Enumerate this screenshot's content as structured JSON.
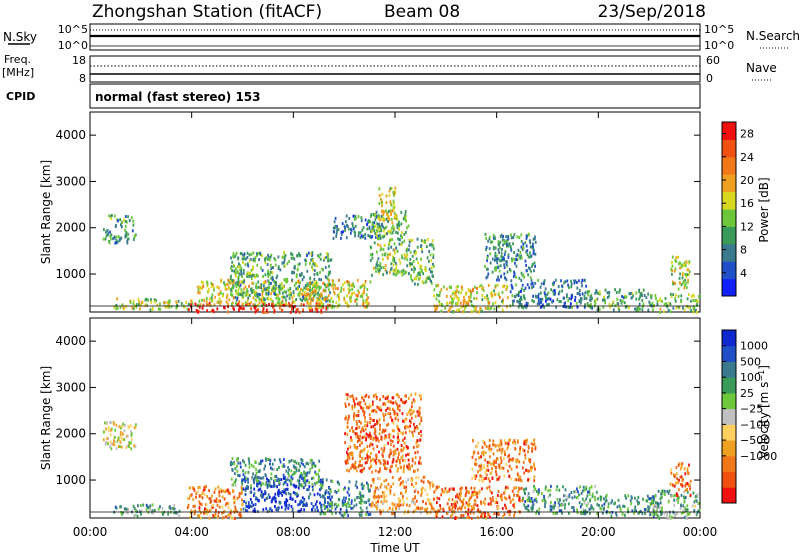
{
  "header": {
    "title": "Zhongshan Station (fitACF)",
    "beam": "Beam 08",
    "date": "23/Sep/2018"
  },
  "noise_panel": {
    "left_label": "N.Sky",
    "right_label": "N.Search",
    "left_ticks": [
      "10^5",
      "10^0"
    ],
    "right_ticks": [
      "10^5",
      "10^0"
    ]
  },
  "freq_panel": {
    "left_label_1": "Freq.",
    "left_label_2": "[MHz]",
    "right_label": "Nave",
    "left_ticks": [
      "18",
      "8"
    ],
    "right_ticks": [
      "60",
      "0"
    ]
  },
  "cpid": {
    "label": "CPID",
    "text": "normal (fast stereo) 153"
  },
  "colors": {
    "power_scale": [
      "#1020ff",
      "#2050c8",
      "#3a7a8e",
      "#3a9a5a",
      "#6cc83a",
      "#d8d820",
      "#f0a020",
      "#f07818",
      "#f05010",
      "#f01010"
    ],
    "velocity_scale": [
      "#f01010",
      "#f05010",
      "#f07818",
      "#f0a020",
      "#ffd060",
      "#c0c0c0",
      "#6cc83a",
      "#3a9a5a",
      "#3a7a8e",
      "#2050c8",
      "#1028d0"
    ]
  },
  "chart_data": [
    {
      "type": "heatmap",
      "name": "power",
      "ylabel": "Slant Range [km]",
      "xlabel": "Time UT",
      "xlim": [
        0,
        24
      ],
      "ylim": [
        180,
        4500
      ],
      "xticks": [
        0,
        4,
        8,
        12,
        16,
        20,
        24
      ],
      "xtick_labels": [
        "00:00",
        "04:00",
        "08:00",
        "12:00",
        "16:00",
        "20:00",
        "00:00"
      ],
      "yticks": [
        1000,
        2000,
        3000,
        4000
      ],
      "colorbar": {
        "label": "Power [dB]",
        "range": [
          0,
          30
        ],
        "ticks": [
          4,
          8,
          12,
          16,
          20,
          24,
          28
        ]
      },
      "regions": [
        {
          "t0": 0.9,
          "t1": 4.0,
          "r0": 250,
          "r1": 500,
          "level": 0.5
        },
        {
          "t0": 3.8,
          "t1": 9.5,
          "r0": 200,
          "r1": 400,
          "level": 0.95
        },
        {
          "t0": 4.2,
          "t1": 9.0,
          "r0": 350,
          "r1": 900,
          "level": 0.55
        },
        {
          "t0": 5.5,
          "t1": 9.5,
          "r0": 450,
          "r1": 1500,
          "level": 0.35
        },
        {
          "t0": 8.5,
          "t1": 11.0,
          "r0": 300,
          "r1": 900,
          "level": 0.6
        },
        {
          "t0": 9.5,
          "t1": 11.5,
          "r0": 1800,
          "r1": 2300,
          "level": 0.25
        },
        {
          "t0": 11.0,
          "t1": 12.5,
          "r0": 1000,
          "r1": 2400,
          "level": 0.45
        },
        {
          "t0": 11.3,
          "t1": 12.0,
          "r0": 2200,
          "r1": 2900,
          "level": 0.55
        },
        {
          "t0": 12.5,
          "t1": 13.5,
          "r0": 800,
          "r1": 1800,
          "level": 0.4
        },
        {
          "t0": 13.5,
          "t1": 16.5,
          "r0": 200,
          "r1": 800,
          "level": 0.55
        },
        {
          "t0": 15.5,
          "t1": 17.5,
          "r0": 900,
          "r1": 1900,
          "level": 0.3
        },
        {
          "t0": 16.5,
          "t1": 19.5,
          "r0": 300,
          "r1": 900,
          "level": 0.25
        },
        {
          "t0": 19.5,
          "t1": 22.0,
          "r0": 250,
          "r1": 700,
          "level": 0.35
        },
        {
          "t0": 22.0,
          "t1": 24.0,
          "r0": 200,
          "r1": 600,
          "level": 0.45
        },
        {
          "t0": 22.8,
          "t1": 23.6,
          "r0": 700,
          "r1": 1400,
          "level": 0.5
        },
        {
          "t0": 0.5,
          "t1": 1.8,
          "r0": 1700,
          "r1": 2300,
          "level": 0.35
        }
      ]
    },
    {
      "type": "heatmap",
      "name": "velocity",
      "ylabel": "Slant Range [km]",
      "xlabel": "Time UT",
      "xlim": [
        0,
        24
      ],
      "ylim": [
        180,
        4500
      ],
      "xticks": [
        0,
        4,
        8,
        12,
        16,
        20,
        24
      ],
      "xtick_labels": [
        "00:00",
        "04:00",
        "08:00",
        "12:00",
        "16:00",
        "20:00",
        "00:00"
      ],
      "yticks": [
        1000,
        2000,
        3000,
        4000
      ],
      "colorbar": {
        "label": "Velocity [m s^-1]",
        "tick_labels": [
          "1000",
          "500",
          "100",
          "25",
          "−25",
          "−100",
          "−500",
          "−1000"
        ]
      },
      "regions": [
        {
          "t0": 0.9,
          "t1": 3.5,
          "r0": 250,
          "r1": 500,
          "level": 0.65
        },
        {
          "t0": 3.8,
          "t1": 6.0,
          "r0": 200,
          "r1": 900,
          "level": 0.25
        },
        {
          "t0": 6.0,
          "t1": 9.5,
          "r0": 350,
          "r1": 1100,
          "level": 0.9
        },
        {
          "t0": 5.5,
          "t1": 9.0,
          "r0": 900,
          "r1": 1500,
          "level": 0.7
        },
        {
          "t0": 9.0,
          "t1": 11.0,
          "r0": 250,
          "r1": 1000,
          "level": 0.75
        },
        {
          "t0": 10.0,
          "t1": 13.0,
          "r0": 1200,
          "r1": 2900,
          "level": 0.2
        },
        {
          "t0": 11.0,
          "t1": 13.5,
          "r0": 300,
          "r1": 1100,
          "level": 0.3
        },
        {
          "t0": 13.5,
          "t1": 17.0,
          "r0": 200,
          "r1": 900,
          "level": 0.2
        },
        {
          "t0": 15.0,
          "t1": 17.5,
          "r0": 1000,
          "r1": 1900,
          "level": 0.25
        },
        {
          "t0": 17.0,
          "t1": 20.0,
          "r0": 300,
          "r1": 900,
          "level": 0.68
        },
        {
          "t0": 20.0,
          "t1": 22.5,
          "r0": 250,
          "r1": 700,
          "level": 0.72
        },
        {
          "t0": 22.0,
          "t1": 24.0,
          "r0": 200,
          "r1": 800,
          "level": 0.62
        },
        {
          "t0": 22.8,
          "t1": 23.6,
          "r0": 700,
          "r1": 1400,
          "level": 0.2
        },
        {
          "t0": 0.5,
          "t1": 1.8,
          "r0": 1700,
          "r1": 2300,
          "level": 0.45
        }
      ]
    }
  ]
}
